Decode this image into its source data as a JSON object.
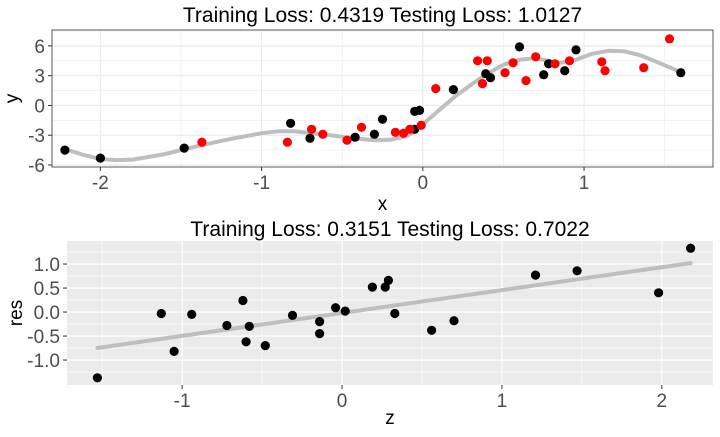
{
  "chart_data": [
    {
      "type": "scatter",
      "title": "Training Loss: 0.4319 Testing Loss: 1.0127",
      "xlabel": "x",
      "ylabel": "y",
      "xlim": [
        -2.3,
        1.8
      ],
      "ylim": [
        -6.2,
        7.6
      ],
      "xticks": [
        -2,
        -1,
        0,
        1
      ],
      "xtick_labels": [
        "-2",
        "-1",
        "0",
        "1"
      ],
      "yticks": [
        -6,
        -3,
        0,
        3,
        6
      ],
      "ytick_labels": [
        "-6",
        "-3",
        "0",
        "3",
        "6"
      ],
      "grid": true,
      "legend": "none",
      "panel_background": "#ffffff",
      "grid_color": "#ebebeb",
      "fit_color": "#bebebe",
      "series": [
        {
          "color": "#000000",
          "points": [
            [
              -2.22,
              -4.5
            ],
            [
              -2.0,
              -5.3
            ],
            [
              -1.48,
              -4.3
            ],
            [
              -0.82,
              -1.8
            ],
            [
              -0.7,
              -3.3
            ],
            [
              -0.42,
              -3.2
            ],
            [
              -0.3,
              -2.9
            ],
            [
              -0.25,
              -1.4
            ],
            [
              -0.05,
              -2.4
            ],
            [
              -0.05,
              -0.6
            ],
            [
              -0.02,
              -0.5
            ],
            [
              0.19,
              1.6
            ],
            [
              0.39,
              3.2
            ],
            [
              0.42,
              2.8
            ],
            [
              0.6,
              5.9
            ],
            [
              0.75,
              3.1
            ],
            [
              0.78,
              4.2
            ],
            [
              0.88,
              3.5
            ],
            [
              0.95,
              5.6
            ],
            [
              1.6,
              3.3
            ]
          ]
        },
        {
          "color": "#ff0000",
          "points": [
            [
              -1.37,
              -3.7
            ],
            [
              -0.84,
              -3.7
            ],
            [
              -0.69,
              -2.4
            ],
            [
              -0.62,
              -2.9
            ],
            [
              -0.47,
              -3.5
            ],
            [
              -0.38,
              -2.2
            ],
            [
              -0.17,
              -2.7
            ],
            [
              -0.12,
              -2.8
            ],
            [
              -0.08,
              -2.4
            ],
            [
              -0.01,
              -2.0
            ],
            [
              0.08,
              1.7
            ],
            [
              0.34,
              4.5
            ],
            [
              0.37,
              2.2
            ],
            [
              0.4,
              4.5
            ],
            [
              0.51,
              3.3
            ],
            [
              0.56,
              4.3
            ],
            [
              0.64,
              2.5
            ],
            [
              0.7,
              4.9
            ],
            [
              0.82,
              4.2
            ],
            [
              0.91,
              4.5
            ],
            [
              1.11,
              4.4
            ],
            [
              1.13,
              3.5
            ],
            [
              1.37,
              3.8
            ],
            [
              1.53,
              6.7
            ]
          ]
        }
      ],
      "fit": [
        [
          -2.22,
          -4.4
        ],
        [
          -2.1,
          -5.0
        ],
        [
          -2.0,
          -5.4
        ],
        [
          -1.9,
          -5.5
        ],
        [
          -1.8,
          -5.45
        ],
        [
          -1.6,
          -4.9
        ],
        [
          -1.4,
          -4.1
        ],
        [
          -1.2,
          -3.4
        ],
        [
          -1.0,
          -2.8
        ],
        [
          -0.9,
          -2.6
        ],
        [
          -0.8,
          -2.6
        ],
        [
          -0.6,
          -2.95
        ],
        [
          -0.4,
          -3.35
        ],
        [
          -0.3,
          -3.5
        ],
        [
          -0.2,
          -3.45
        ],
        [
          -0.1,
          -3.1
        ],
        [
          -0.05,
          -2.6
        ],
        [
          0.0,
          -1.9
        ],
        [
          0.1,
          -0.5
        ],
        [
          0.2,
          0.9
        ],
        [
          0.3,
          2.1
        ],
        [
          0.4,
          3.2
        ],
        [
          0.5,
          4.1
        ],
        [
          0.6,
          4.6
        ],
        [
          0.68,
          4.75
        ],
        [
          0.75,
          4.6
        ],
        [
          0.85,
          4.3
        ],
        [
          0.95,
          4.6
        ],
        [
          1.05,
          5.2
        ],
        [
          1.15,
          5.5
        ],
        [
          1.25,
          5.45
        ],
        [
          1.35,
          5.05
        ],
        [
          1.45,
          4.4
        ],
        [
          1.55,
          3.7
        ],
        [
          1.6,
          3.35
        ]
      ]
    },
    {
      "type": "scatter",
      "title": "Training Loss: 0.3151 Testing Loss: 0.7022",
      "xlabel": "z",
      "ylabel": "res",
      "xlim": [
        -1.72,
        2.32
      ],
      "ylim": [
        -1.52,
        1.48
      ],
      "xticks": [
        -1,
        0,
        1,
        2
      ],
      "xtick_labels": [
        "-1",
        "0",
        "1",
        "2"
      ],
      "yticks": [
        -1.0,
        -0.5,
        0.0,
        0.5,
        1.0
      ],
      "ytick_labels": [
        "-1.0",
        "-0.5",
        "0.0",
        "0.5",
        "1.0"
      ],
      "grid": true,
      "legend": "none",
      "panel_background": "#ebebeb",
      "grid_color": "#ffffff",
      "fit_color": "#bebebe",
      "series": [
        {
          "color": "#000000",
          "points": [
            [
              -1.53,
              -1.37
            ],
            [
              -1.13,
              -0.03
            ],
            [
              -1.05,
              -0.82
            ],
            [
              -0.94,
              -0.05
            ],
            [
              -0.72,
              -0.28
            ],
            [
              -0.62,
              0.24
            ],
            [
              -0.6,
              -0.62
            ],
            [
              -0.58,
              -0.3
            ],
            [
              -0.48,
              -0.7
            ],
            [
              -0.31,
              -0.07
            ],
            [
              -0.14,
              -0.2
            ],
            [
              -0.14,
              -0.45
            ],
            [
              -0.04,
              0.09
            ],
            [
              0.02,
              0.02
            ],
            [
              0.19,
              0.52
            ],
            [
              0.27,
              0.52
            ],
            [
              0.29,
              0.66
            ],
            [
              0.33,
              -0.03
            ],
            [
              0.56,
              -0.38
            ],
            [
              0.7,
              -0.18
            ],
            [
              1.21,
              0.77
            ],
            [
              1.47,
              0.86
            ],
            [
              1.98,
              0.4
            ],
            [
              2.18,
              1.33
            ]
          ]
        }
      ],
      "fit": [
        [
          -1.53,
          -0.75
        ],
        [
          2.18,
          1.02
        ]
      ]
    }
  ]
}
